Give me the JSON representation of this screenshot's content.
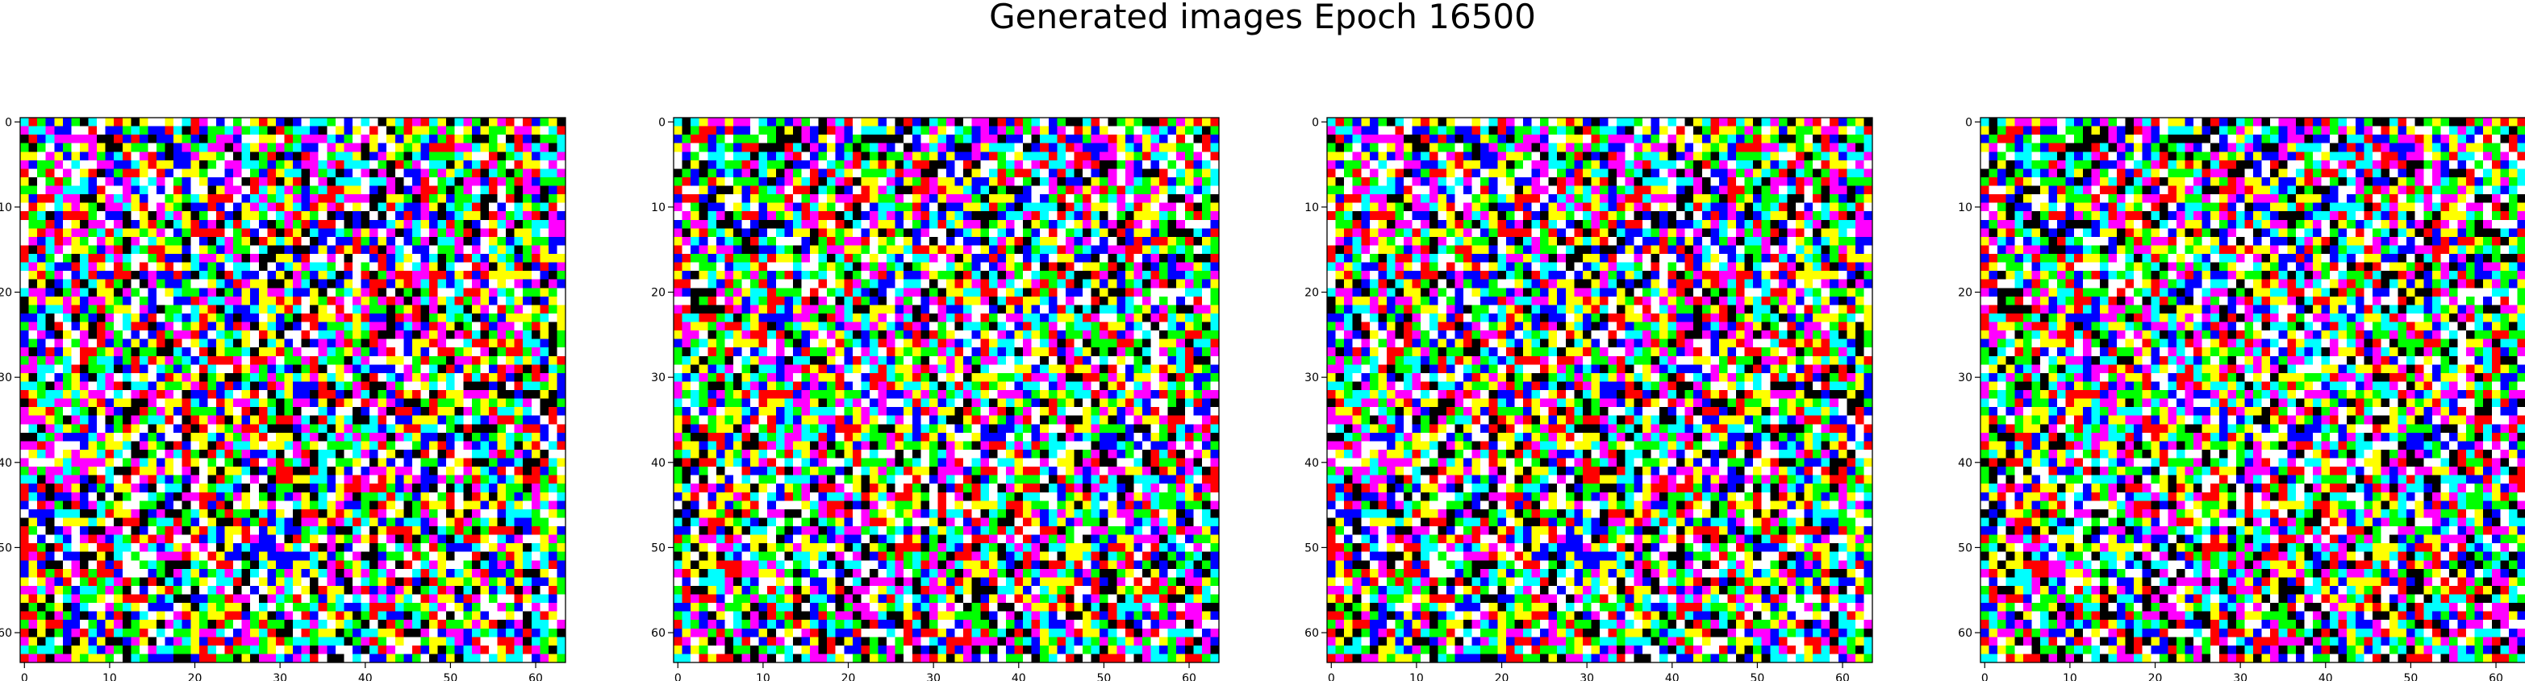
{
  "figure": {
    "title": "Generated images Epoch 16500"
  },
  "chart_data": [
    {
      "type": "heatmap",
      "title": "",
      "xlabel": "",
      "ylabel": "",
      "xlim": [
        -0.5,
        63.5
      ],
      "ylim": [
        63.5,
        -0.5
      ],
      "xticks": [
        0,
        10,
        20,
        30,
        40,
        50,
        60
      ],
      "yticks": [
        0,
        10,
        20,
        30,
        40,
        50,
        60
      ],
      "rows": 64,
      "cols": 64,
      "palette": [
        "#ffffff",
        "#00ffff",
        "#ff00ff",
        "#ffff00",
        "#00ff00",
        "#0000ff",
        "#ff0000",
        "#000000"
      ],
      "pixel_seed": 101,
      "grid": false
    },
    {
      "type": "heatmap",
      "title": "",
      "xlabel": "",
      "ylabel": "",
      "xlim": [
        -0.5,
        63.5
      ],
      "ylim": [
        63.5,
        -0.5
      ],
      "xticks": [
        0,
        10,
        20,
        30,
        40,
        50,
        60
      ],
      "yticks": [
        0,
        10,
        20,
        30,
        40,
        50,
        60
      ],
      "rows": 64,
      "cols": 64,
      "palette": [
        "#ffffff",
        "#00ffff",
        "#ff00ff",
        "#ffff00",
        "#00ff00",
        "#0000ff",
        "#ff0000",
        "#000000"
      ],
      "pixel_seed": 202,
      "grid": false
    },
    {
      "type": "heatmap",
      "title": "",
      "xlabel": "",
      "ylabel": "",
      "xlim": [
        -0.5,
        63.5
      ],
      "ylim": [
        63.5,
        -0.5
      ],
      "xticks": [
        0,
        10,
        20,
        30,
        40,
        50,
        60
      ],
      "yticks": [
        0,
        10,
        20,
        30,
        40,
        50,
        60
      ],
      "rows": 64,
      "cols": 64,
      "palette": [
        "#ffffff",
        "#00ffff",
        "#ff00ff",
        "#ffff00",
        "#00ff00",
        "#0000ff",
        "#ff0000",
        "#000000"
      ],
      "pixel_seed": 101,
      "grid": false
    },
    {
      "type": "heatmap",
      "title": "",
      "xlabel": "",
      "ylabel": "",
      "xlim": [
        -0.5,
        63.5
      ],
      "ylim": [
        63.5,
        -0.5
      ],
      "xticks": [
        0,
        10,
        20,
        30,
        40,
        50,
        60
      ],
      "yticks": [
        0,
        10,
        20,
        30,
        40,
        50,
        60
      ],
      "rows": 64,
      "cols": 64,
      "palette": [
        "#ffffff",
        "#00ffff",
        "#ff00ff",
        "#ffff00",
        "#00ff00",
        "#0000ff",
        "#ff0000",
        "#000000"
      ],
      "pixel_seed": 202,
      "grid": false
    }
  ]
}
